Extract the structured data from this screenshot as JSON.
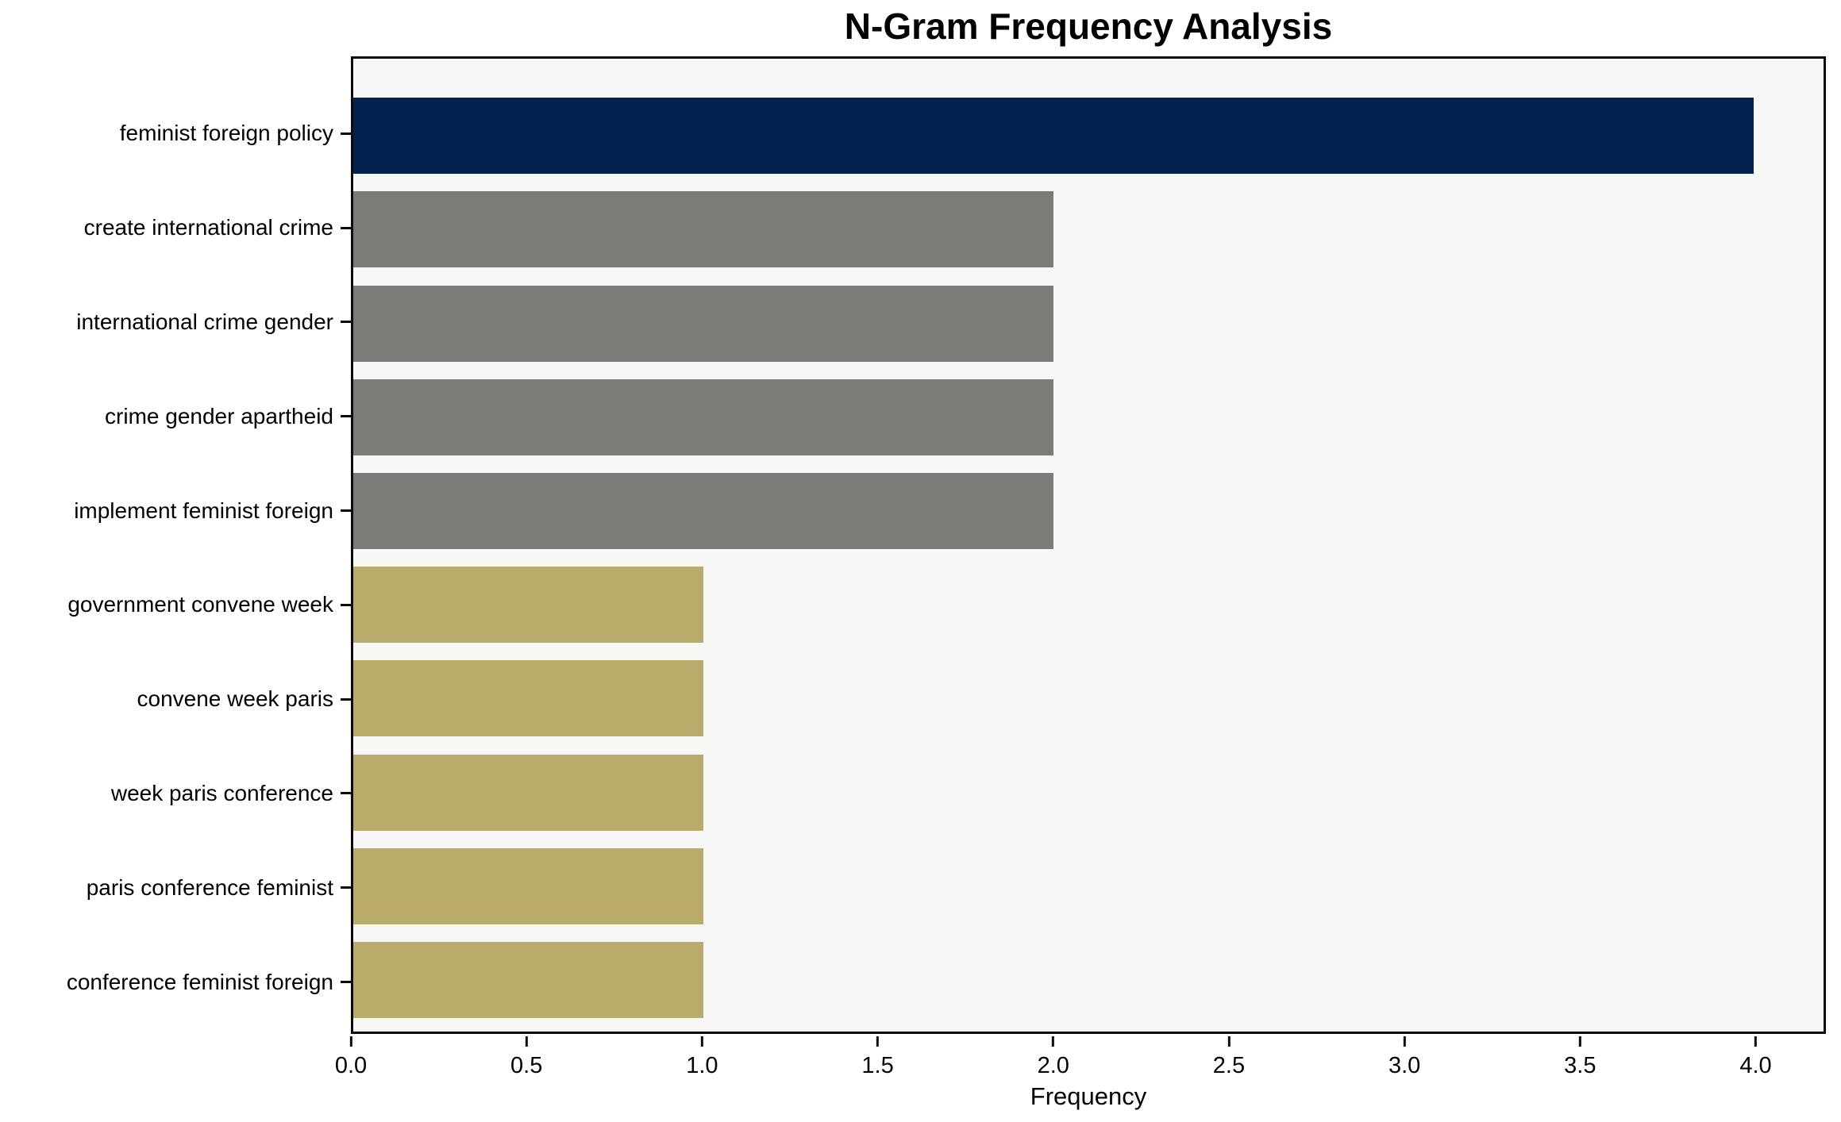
{
  "chart_data": {
    "type": "bar",
    "orientation": "horizontal",
    "title": "N-Gram Frequency Analysis",
    "xlabel": "Frequency",
    "ylabel": "",
    "categories": [
      "feminist foreign policy",
      "create international crime",
      "international crime gender",
      "crime gender apartheid",
      "implement feminist foreign",
      "government convene week",
      "convene week paris",
      "week paris conference",
      "paris conference feminist",
      "conference feminist foreign"
    ],
    "values": [
      4,
      2,
      2,
      2,
      2,
      1,
      1,
      1,
      1,
      1
    ],
    "bar_colors": [
      "#02234d",
      "#7b7b77",
      "#7b7b77",
      "#7b7b77",
      "#7b7b77",
      "#b9ac6b",
      "#b9ac6b",
      "#b9ac6b",
      "#b9ac6b",
      "#b9ac6b"
    ],
    "xlim": [
      0,
      4.2
    ],
    "xticks": [
      0.0,
      0.5,
      1.0,
      1.5,
      2.0,
      2.5,
      3.0,
      3.5,
      4.0
    ],
    "xtick_labels": [
      "0.0",
      "0.5",
      "1.0",
      "1.5",
      "2.0",
      "2.5",
      "3.0",
      "3.5",
      "4.0"
    ],
    "grid": false,
    "legend": null,
    "colors": {
      "plot_background": "#f7f7f5",
      "figure_background": "#ffffff",
      "spine": "#0b0b0b",
      "text": "#000000"
    }
  }
}
